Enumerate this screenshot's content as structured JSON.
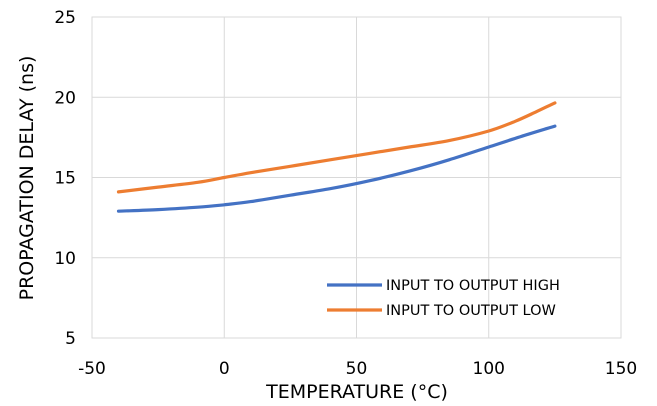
{
  "chart_data": {
    "type": "line",
    "title": "",
    "xlabel": "TEMPERATURE (°C)",
    "ylabel": "PROPAGATION DELAY (ns)",
    "xlim": [
      -50,
      150
    ],
    "ylim": [
      5,
      25
    ],
    "xticks": [
      -50,
      0,
      50,
      100,
      150
    ],
    "yticks": [
      5,
      10,
      15,
      20,
      25
    ],
    "grid": true,
    "legend_position": "bottom-right",
    "series": [
      {
        "name": "INPUT TO OUTPUT HIGH",
        "color": "#4472C4",
        "x": [
          -40,
          -25,
          -10,
          0,
          10,
          25,
          40,
          55,
          70,
          85,
          100,
          115,
          125
        ],
        "y": [
          12.9,
          13.0,
          13.15,
          13.3,
          13.5,
          13.9,
          14.3,
          14.8,
          15.4,
          16.1,
          16.9,
          17.7,
          18.2
        ]
      },
      {
        "name": "INPUT TO OUTPUT LOW",
        "color": "#ED7D31",
        "x": [
          -40,
          -25,
          -10,
          0,
          10,
          25,
          40,
          55,
          70,
          85,
          100,
          110,
          118,
          125
        ],
        "y": [
          14.1,
          14.4,
          14.7,
          15.0,
          15.3,
          15.7,
          16.1,
          16.5,
          16.9,
          17.3,
          17.9,
          18.5,
          19.1,
          19.65
        ]
      }
    ]
  }
}
